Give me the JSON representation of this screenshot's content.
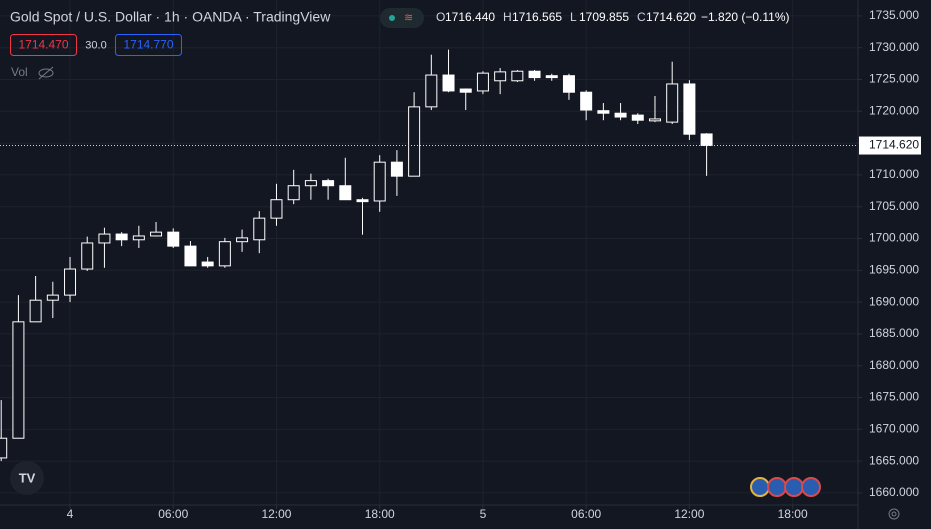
{
  "chart_data": {
    "type": "candlestick",
    "title": "Gold Spot / U.S. Dollar · 1h · OANDA · TradingView",
    "ohlc_legend": [
      {
        "key": "O",
        "value": "1716.440"
      },
      {
        "key": "H",
        "value": "1716.565"
      },
      {
        "key": "L",
        "value": "1709.855"
      },
      {
        "key": "C",
        "value": "1714.620"
      }
    ],
    "change": "−1.820 (−0.11%)",
    "bid": "1714.470",
    "spread": "30.0",
    "ask": "1714.770",
    "volume_label": "Vol",
    "last_price": {
      "value": 1714.62,
      "label": "1714.620"
    },
    "up_color": "#131722",
    "down_color": "#ffffff",
    "wick_color": "#ffffff",
    "x": [
      -4,
      -3,
      -2,
      -1,
      0,
      1,
      2,
      3,
      4,
      5,
      6,
      7,
      8,
      9,
      10,
      11,
      12,
      13,
      14,
      15,
      16,
      17,
      18,
      19,
      20,
      21,
      22,
      23,
      24,
      25,
      26,
      27,
      28,
      29,
      30,
      31,
      32,
      33,
      34,
      35,
      36,
      37
    ],
    "open": [
      1665.5,
      1668.6,
      1686.9,
      1690.3,
      1691.1,
      1695.2,
      1699.3,
      1700.7,
      1699.8,
      1700.4,
      1701.0,
      1698.8,
      1696.3,
      1695.7,
      1699.5,
      1699.8,
      1703.2,
      1706.1,
      1708.3,
      1709.1,
      1708.3,
      1706.1,
      1705.9,
      1712.0,
      1709.8,
      1720.7,
      1725.7,
      1723.5,
      1723.2,
      1724.8,
      1724.8,
      1726.3,
      1725.6,
      1725.6,
      1723.0,
      1720.1,
      1719.7,
      1719.4,
      1718.5,
      1718.3,
      1724.3,
      1716.44
    ],
    "high": [
      1674.6,
      1691.1,
      1694.1,
      1693.2,
      1697.1,
      1700.3,
      1701.7,
      1701.0,
      1702.0,
      1702.6,
      1701.6,
      1699.6,
      1697.1,
      1700.1,
      1701.4,
      1704.3,
      1708.6,
      1710.8,
      1710.2,
      1709.4,
      1712.7,
      1706.4,
      1713.1,
      1713.9,
      1723.0,
      1728.9,
      1729.7,
      1723.6,
      1726.3,
      1726.8,
      1726.5,
      1726.5,
      1725.9,
      1725.9,
      1723.3,
      1721.3,
      1721.3,
      1719.7,
      1722.4,
      1727.8,
      1724.9,
      1716.565
    ],
    "low": [
      1665.0,
      1668.6,
      1686.9,
      1687.5,
      1690.0,
      1694.9,
      1695.4,
      1698.8,
      1698.5,
      1700.3,
      1698.5,
      1695.7,
      1695.4,
      1695.4,
      1697.9,
      1697.7,
      1702.0,
      1705.4,
      1706.1,
      1706.1,
      1706.1,
      1700.6,
      1704.2,
      1706.7,
      1709.8,
      1720.2,
      1723.0,
      1720.2,
      1722.7,
      1722.7,
      1724.6,
      1724.8,
      1724.8,
      1721.8,
      1718.6,
      1718.6,
      1718.6,
      1718.0,
      1718.3,
      1718.0,
      1715.5,
      1709.855
    ],
    "close": [
      1668.6,
      1686.9,
      1690.3,
      1691.1,
      1695.2,
      1699.3,
      1700.7,
      1699.8,
      1700.4,
      1701.0,
      1698.8,
      1695.7,
      1695.7,
      1699.5,
      1700.1,
      1703.2,
      1706.1,
      1708.3,
      1709.1,
      1708.3,
      1706.1,
      1705.8,
      1712.0,
      1709.8,
      1720.7,
      1725.7,
      1723.2,
      1723.0,
      1726.0,
      1726.2,
      1726.3,
      1725.3,
      1725.3,
      1723.0,
      1720.2,
      1719.7,
      1719.1,
      1718.6,
      1718.8,
      1724.3,
      1716.4,
      1714.62
    ],
    "xlim": [
      -4.07,
      45.8
    ],
    "ylim": [
      1658.1,
      1737.5
    ],
    "xticks": [
      {
        "value": 0,
        "label": "4"
      },
      {
        "value": 6,
        "label": "06:00"
      },
      {
        "value": 12,
        "label": "12:00"
      },
      {
        "value": 18,
        "label": "18:00"
      },
      {
        "value": 24,
        "label": "5"
      },
      {
        "value": 30,
        "label": "06:00"
      },
      {
        "value": 36,
        "label": "12:00"
      },
      {
        "value": 42,
        "label": "18:00"
      }
    ],
    "yticks": [
      {
        "value": 1660,
        "label": "1660.000"
      },
      {
        "value": 1665,
        "label": "1665.000"
      },
      {
        "value": 1670,
        "label": "1670.000"
      },
      {
        "value": 1675,
        "label": "1675.000"
      },
      {
        "value": 1680,
        "label": "1680.000"
      },
      {
        "value": 1685,
        "label": "1685.000"
      },
      {
        "value": 1690,
        "label": "1690.000"
      },
      {
        "value": 1695,
        "label": "1695.000"
      },
      {
        "value": 1700,
        "label": "1700.000"
      },
      {
        "value": 1705,
        "label": "1705.000"
      },
      {
        "value": 1710,
        "label": "1710.000"
      },
      {
        "value": 1715,
        "label": "1715.000"
      },
      {
        "value": 1720,
        "label": "1720.000"
      },
      {
        "value": 1725,
        "label": "1725.000"
      },
      {
        "value": 1730,
        "label": "1730.000"
      },
      {
        "value": 1735,
        "label": "1735.000"
      }
    ],
    "grid": true
  }
}
